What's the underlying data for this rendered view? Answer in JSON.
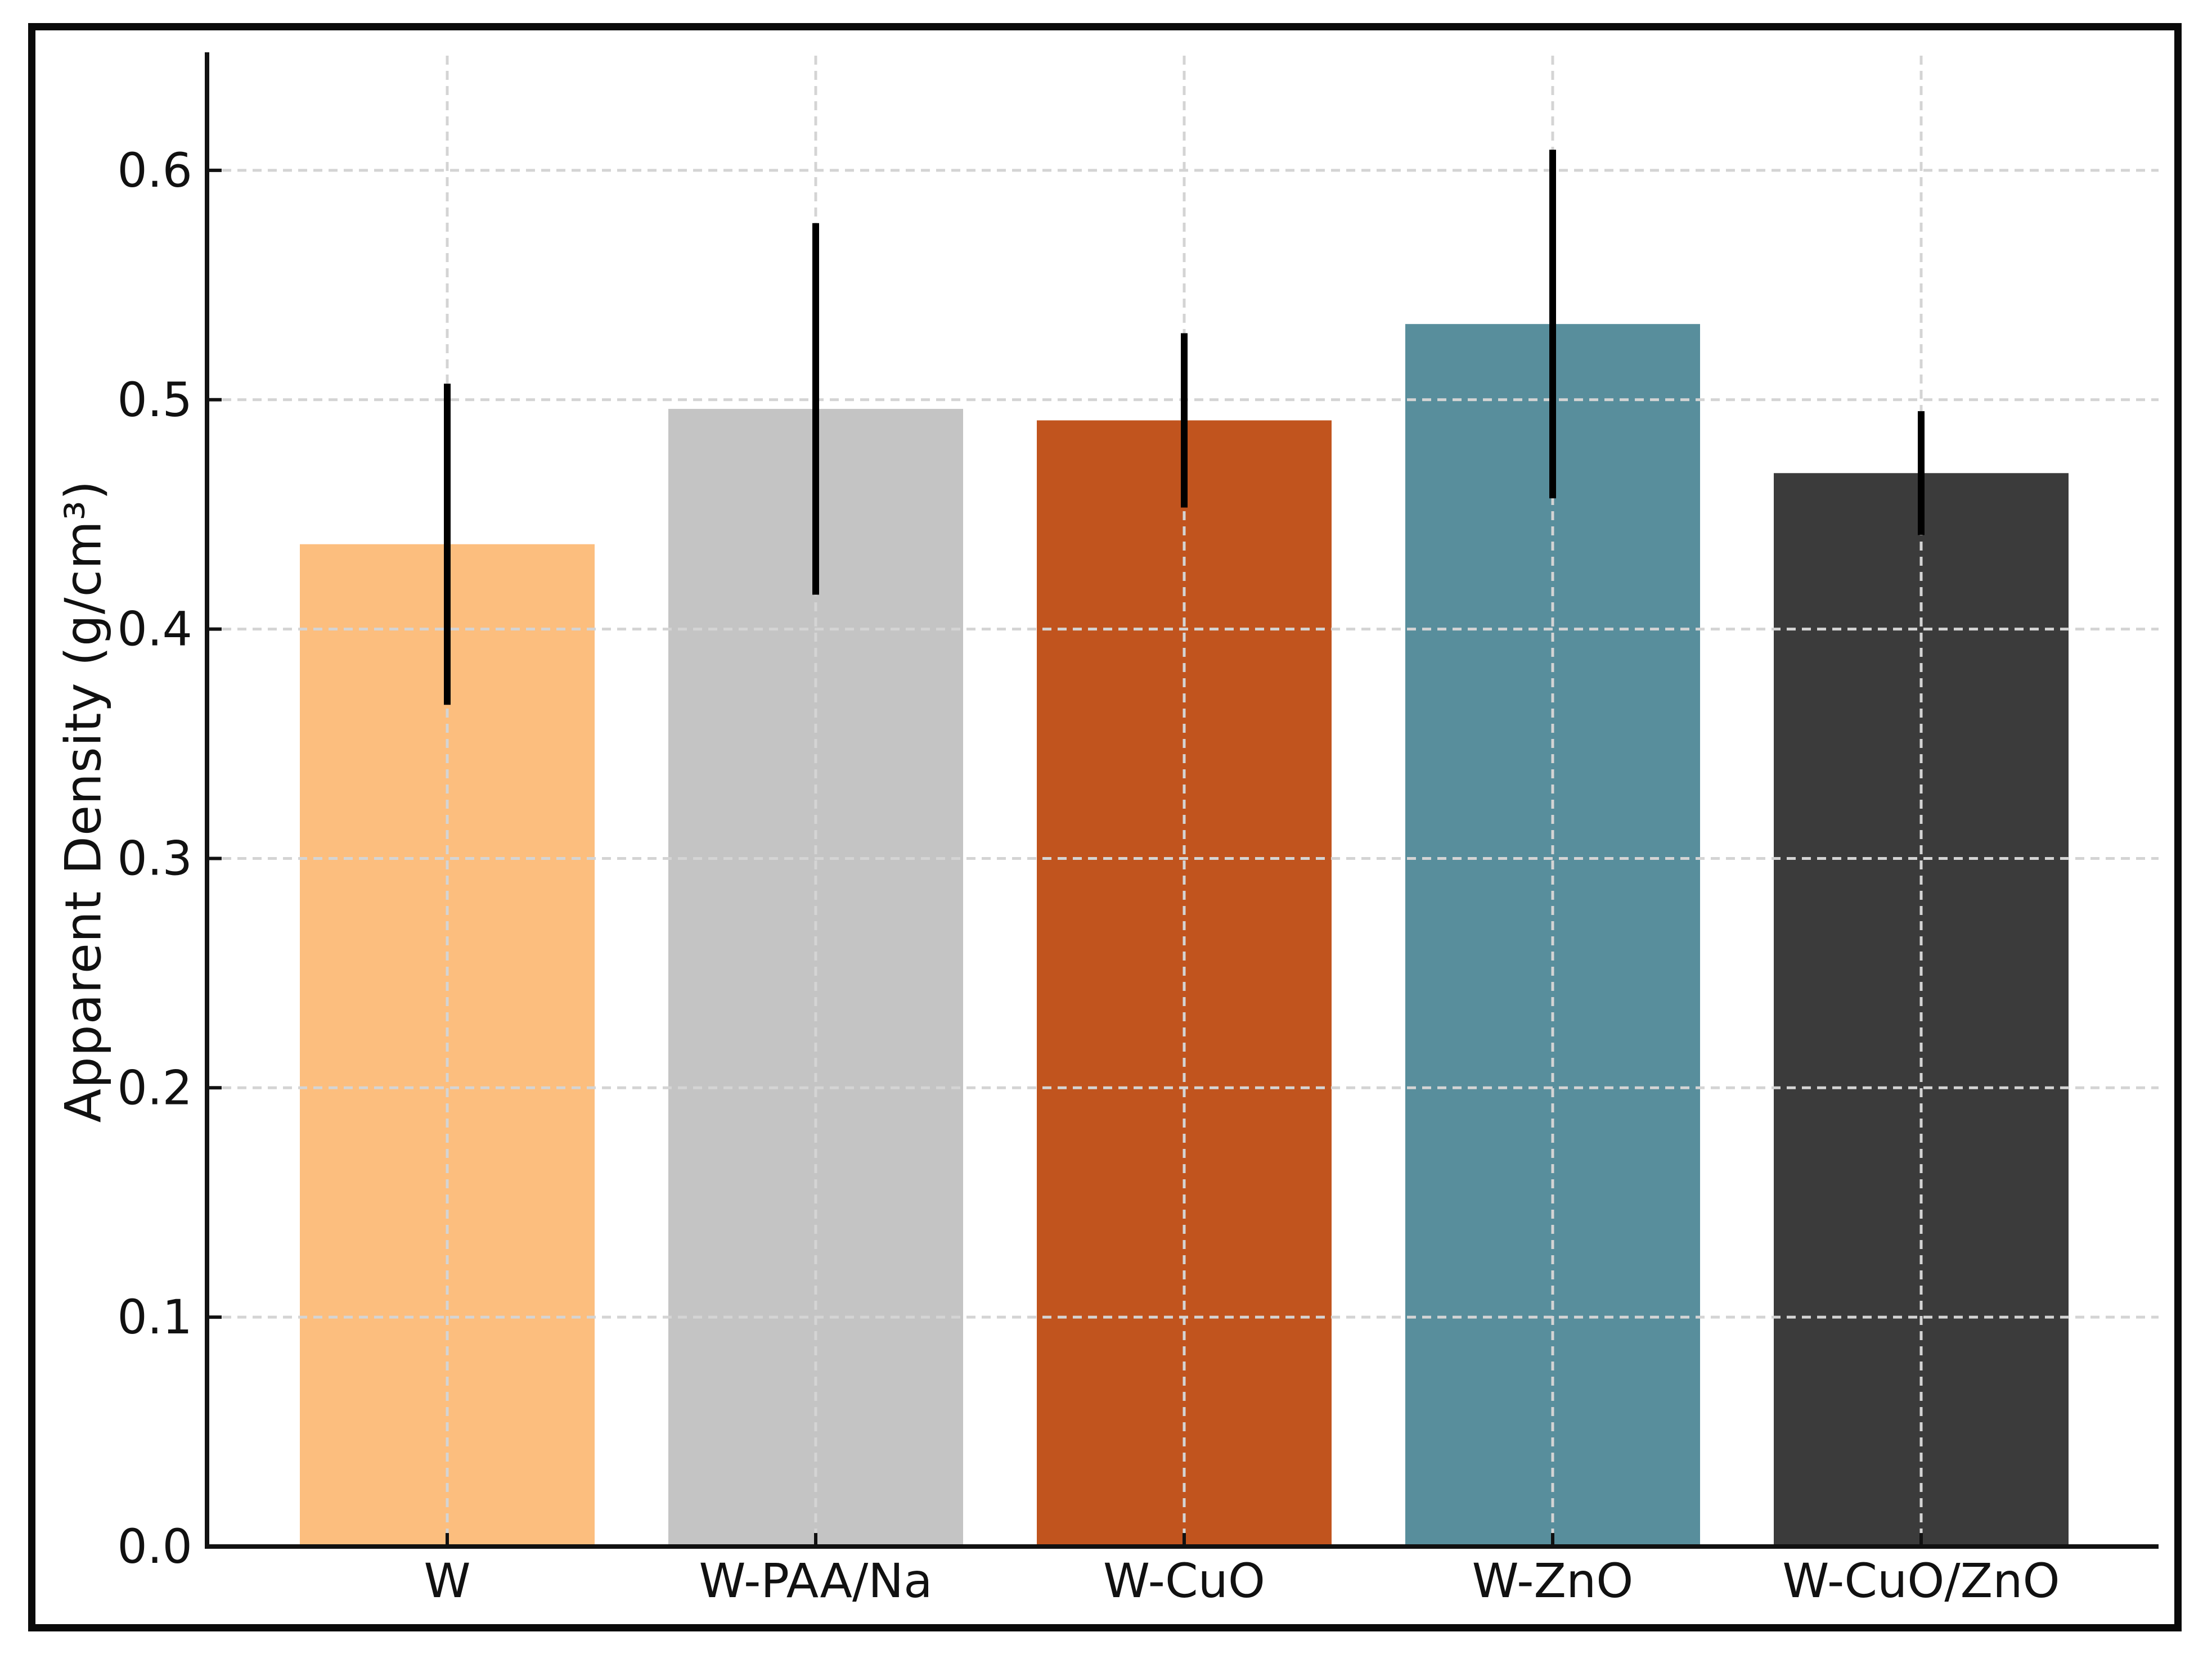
{
  "figure": {
    "background_color": "#ffffff",
    "border_color": "#0a0a0a"
  },
  "chart_data": {
    "type": "bar",
    "title": "",
    "xlabel": "",
    "ylabel": "Apparent Density (g/cm³)",
    "categories": [
      "W",
      "W-PAA/Na",
      "W-CuO",
      "W-ZnO",
      "W-CuO/ZnO"
    ],
    "values": [
      0.437,
      0.496,
      0.491,
      0.533,
      0.468
    ],
    "error_bars": [
      0.07,
      0.081,
      0.038,
      0.076,
      0.027
    ],
    "bar_colors": [
      "#FCBE7E",
      "#C4C4C4",
      "#C1541E",
      "#588E9C",
      "#3B3B3B"
    ],
    "y_tick_labels": [
      "0.0",
      "0.1",
      "0.2",
      "0.3",
      "0.4",
      "0.5",
      "0.6"
    ],
    "y_tick_values": [
      0.0,
      0.1,
      0.2,
      0.3,
      0.4,
      0.5,
      0.6
    ],
    "ylim": [
      0.0,
      0.65
    ],
    "grid": {
      "on": true,
      "style": "dashed",
      "color": "#D4D4D4",
      "x_grid": true,
      "y_grid": true,
      "above_bars": true
    },
    "error_bar_color": "#000000",
    "axis_color": "#111111",
    "tick_direction": "in",
    "legend": {
      "visible": false
    }
  }
}
